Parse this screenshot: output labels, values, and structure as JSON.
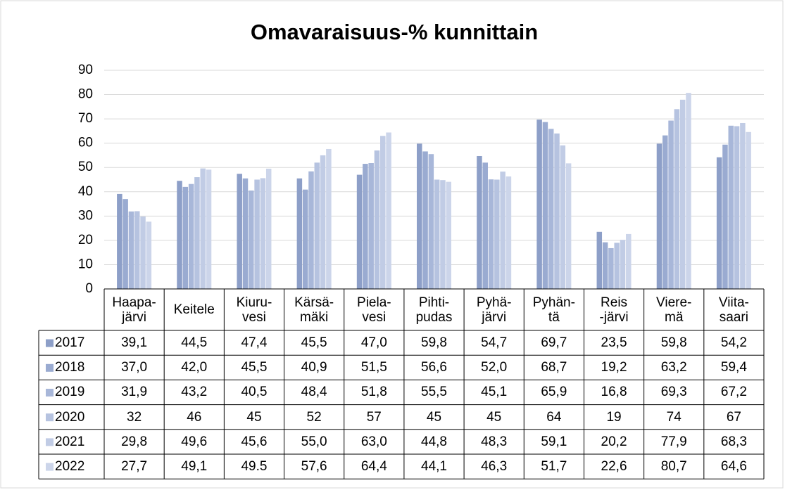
{
  "chart_data": {
    "type": "bar",
    "title": "Omavaraisuus-% kunnittain",
    "categories": [
      "Haapa-\njärvi",
      "Keitele",
      "Kiuru-\nvesi",
      "Kärsä-\nmäki",
      "Piela-\nvesi",
      "Pihti-\npudas",
      "Pyhä-\njärvi",
      "Pyhän-\ntä",
      "Reis\n-järvi",
      "Viere-\nmä",
      "Viita-\nsaari"
    ],
    "series": [
      {
        "name": "2017",
        "color": "#8d9fc8",
        "values": [
          39.1,
          44.5,
          47.4,
          45.5,
          47.0,
          59.8,
          54.7,
          69.7,
          23.5,
          59.8,
          54.2
        ],
        "value_labels": [
          "39,1",
          "44,5",
          "47,4",
          "45,5",
          "47,0",
          "59,8",
          "54,7",
          "69,7",
          "23,5",
          "59,8",
          "54,2"
        ]
      },
      {
        "name": "2018",
        "color": "#9aabd1",
        "values": [
          37.0,
          42.0,
          45.5,
          40.9,
          51.5,
          56.6,
          52.0,
          68.7,
          19.2,
          63.2,
          59.4
        ],
        "value_labels": [
          "37,0",
          "42,0",
          "45,5",
          "40,9",
          "51,5",
          "56,6",
          "52,0",
          "68,7",
          "19,2",
          "63,2",
          "59,4"
        ]
      },
      {
        "name": "2019",
        "color": "#a8b7d9",
        "values": [
          31.9,
          43.2,
          40.5,
          48.4,
          51.8,
          55.5,
          45.1,
          65.9,
          16.8,
          69.3,
          67.2
        ],
        "value_labels": [
          "31,9",
          "43,2",
          "40,5",
          "48,4",
          "51,8",
          "55,5",
          "45,1",
          "65,9",
          "16,8",
          "69,3",
          "67,2"
        ]
      },
      {
        "name": "2020",
        "color": "#b6c3e0",
        "values": [
          32,
          46,
          45,
          52,
          57,
          45,
          45,
          64,
          19,
          74,
          67
        ]
      },
      {
        "name": "2021",
        "color": "#c1cce5",
        "values": [
          29.8,
          49.6,
          45.6,
          55.0,
          63.0,
          44.8,
          48.3,
          59.1,
          20.2,
          77.9,
          68.3
        ],
        "value_labels": [
          "29,8",
          "49,6",
          "45,6",
          "55,0",
          "63,0",
          "44,8",
          "48,3",
          "59,1",
          "20,2",
          "77,9",
          "68,3"
        ]
      },
      {
        "name": "2022",
        "color": "#ccd5ea",
        "values": [
          27.7,
          49.1,
          49.5,
          57.6,
          64.4,
          44.1,
          46.3,
          51.7,
          22.6,
          80.7,
          64.6
        ],
        "value_labels": [
          "27,7",
          "49,1",
          "49.5",
          "57,6",
          "64,4",
          "44,1",
          "46,3",
          "51,7",
          "22,6",
          "80,7",
          "64,6"
        ]
      }
    ],
    "ylim": [
      0,
      90
    ],
    "yticks": [
      0,
      10,
      20,
      30,
      40,
      50,
      60,
      70,
      80,
      90
    ],
    "grid": true
  }
}
